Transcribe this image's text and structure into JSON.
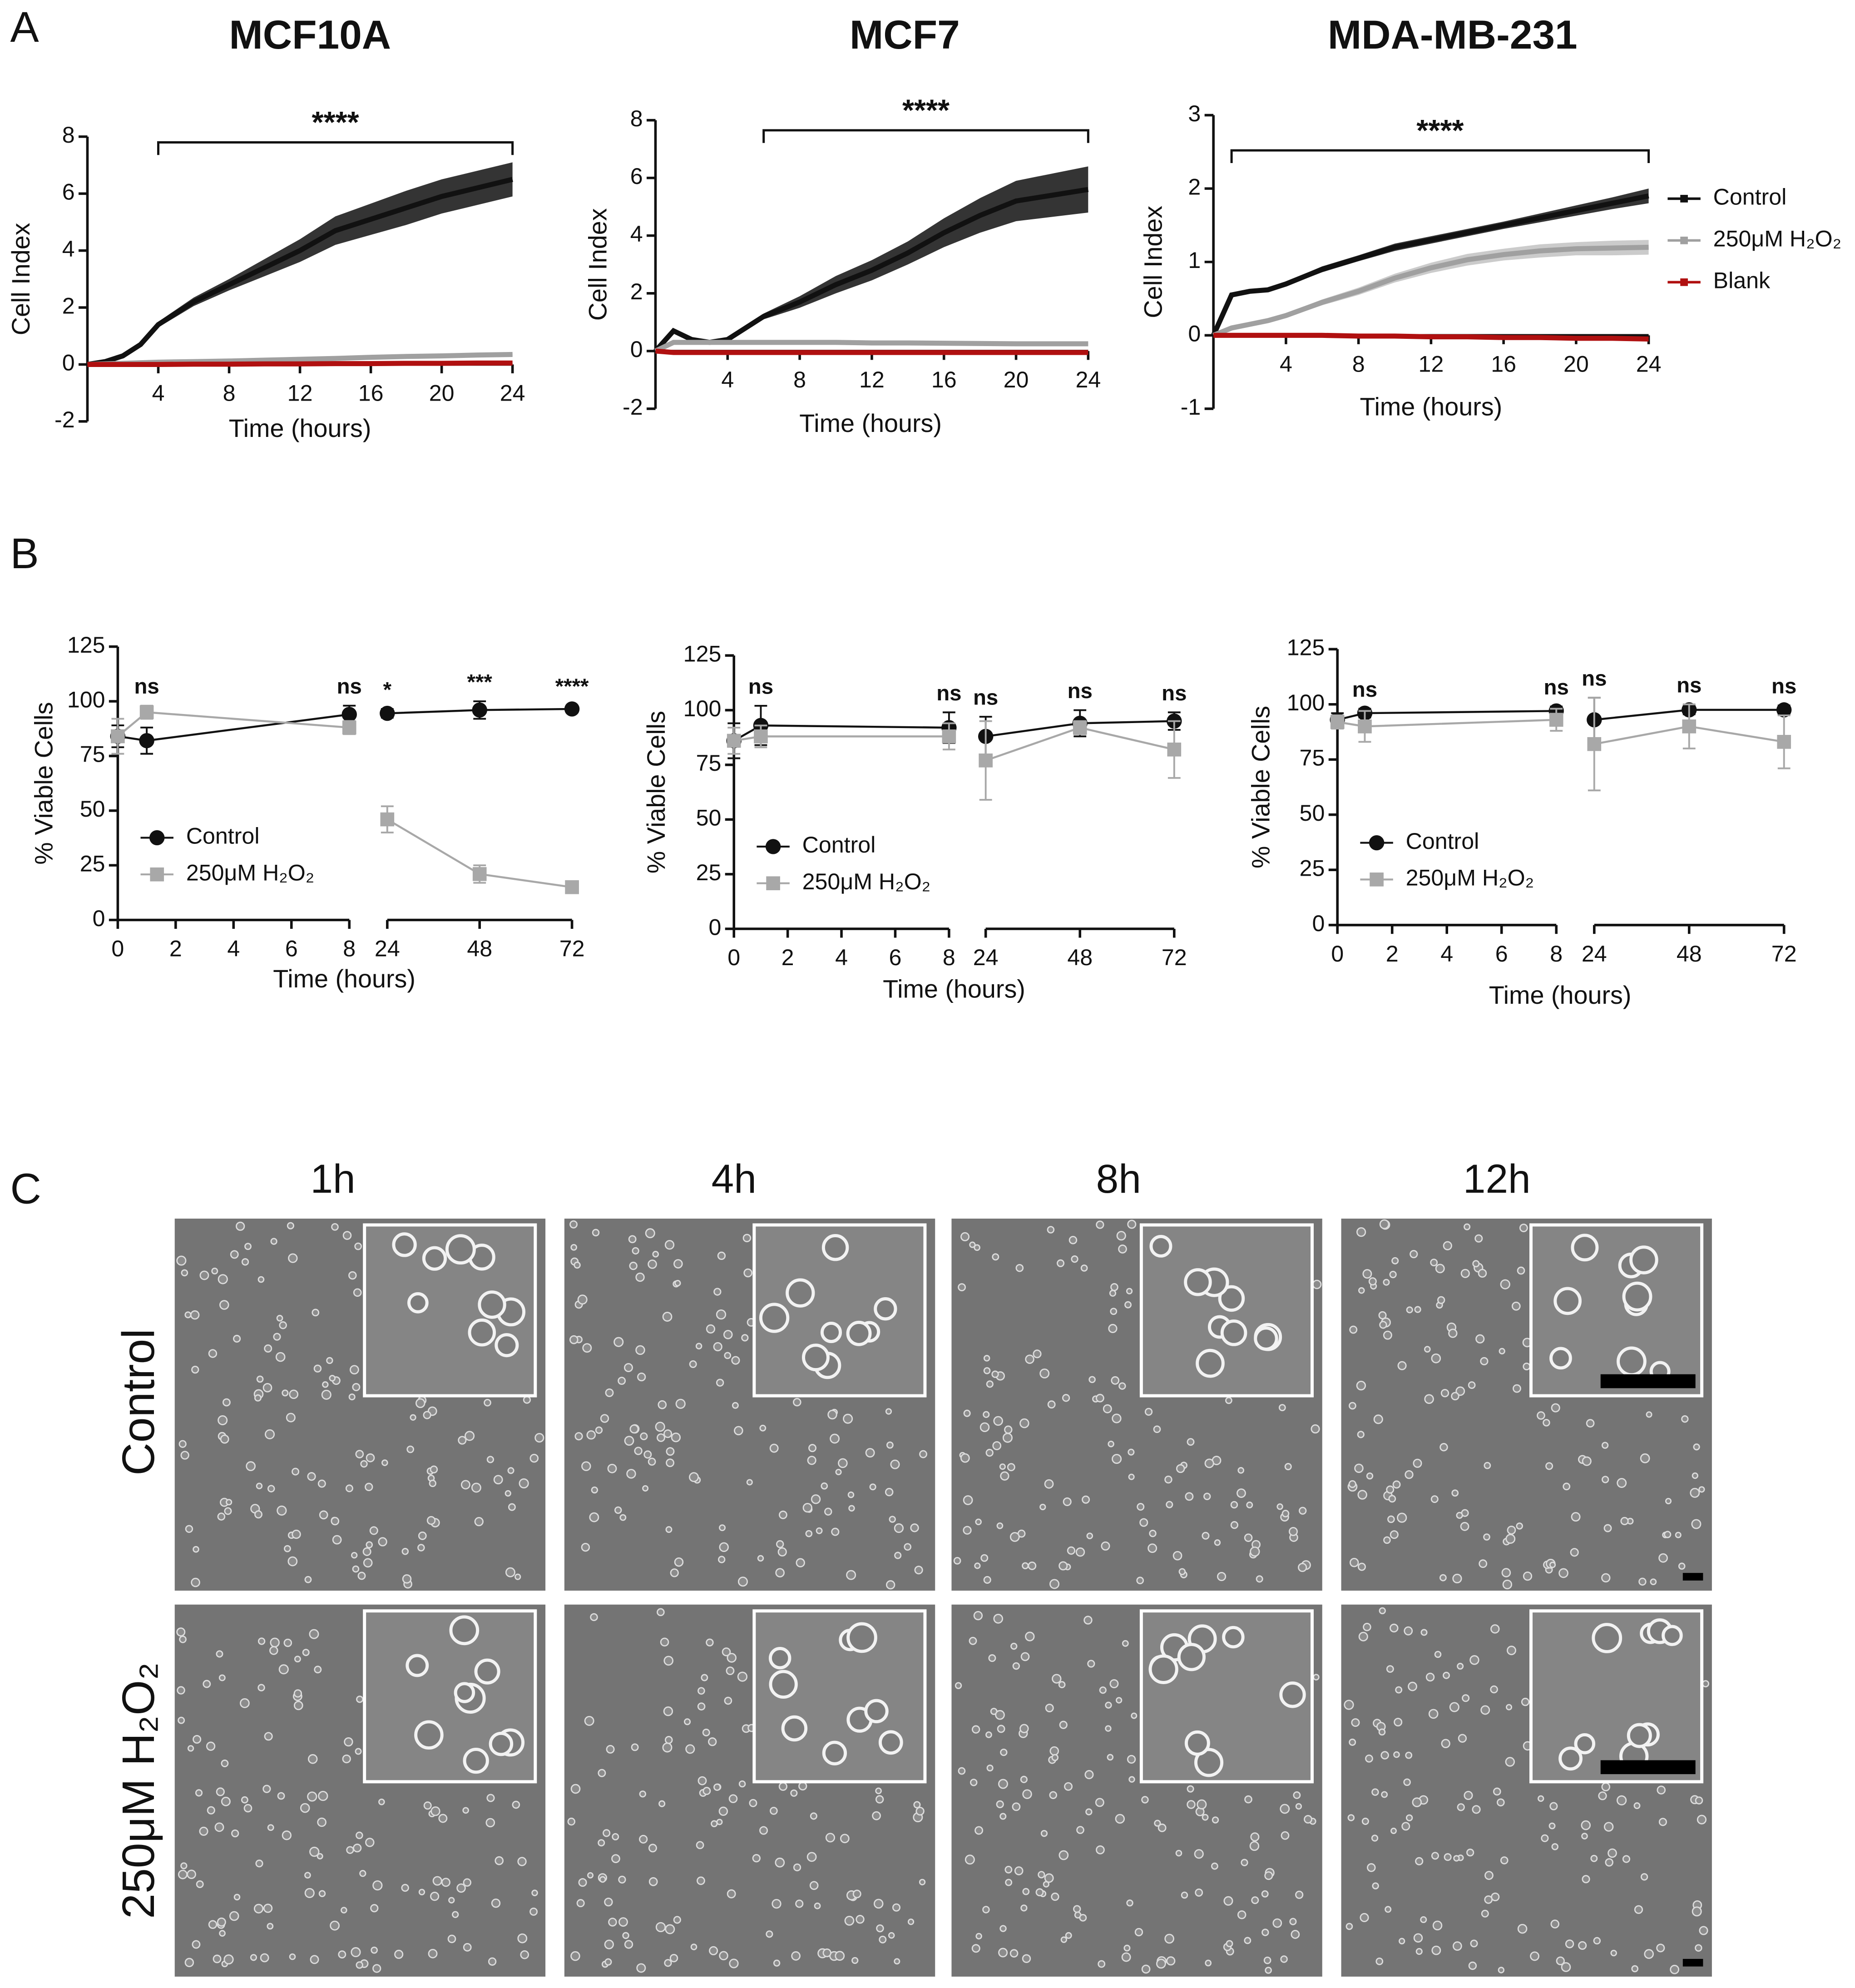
{
  "panel_labels": [
    "A",
    "B",
    "C"
  ],
  "chart_data": [
    {
      "type": "line",
      "title": "MCF10A",
      "x_label": "Time (hours)",
      "y_label": "Cell Index",
      "x": [
        0,
        1,
        2,
        3,
        4,
        6,
        8,
        10,
        12,
        14,
        16,
        18,
        20,
        22,
        24
      ],
      "xlim": [
        0,
        24
      ],
      "xticks": [
        4,
        8,
        12,
        16,
        20,
        24
      ],
      "ylim": [
        -2,
        8
      ],
      "yticks": [
        -2,
        0,
        2,
        4,
        6,
        8
      ],
      "band": true,
      "series": [
        {
          "name": "Control",
          "color": "#111111",
          "values": [
            0,
            0.1,
            0.3,
            0.7,
            1.4,
            2.2,
            2.8,
            3.4,
            4.0,
            4.7,
            5.1,
            5.5,
            5.9,
            6.2,
            6.5
          ],
          "error": [
            0,
            0.02,
            0.05,
            0.08,
            0.1,
            0.15,
            0.2,
            0.3,
            0.4,
            0.5,
            0.55,
            0.6,
            0.6,
            0.6,
            0.6
          ]
        },
        {
          "name": "250μM H₂O₂",
          "color": "#a0a0a0",
          "values": [
            0,
            0.02,
            0.04,
            0.06,
            0.08,
            0.1,
            0.12,
            0.15,
            0.18,
            0.21,
            0.25,
            0.28,
            0.3,
            0.33,
            0.35
          ],
          "error": [
            0,
            0.05,
            0.05,
            0.05,
            0.05,
            0.05,
            0.05,
            0.05,
            0.05,
            0.05,
            0.05,
            0.05,
            0.05,
            0.05,
            0.05
          ]
        },
        {
          "name": "Blank",
          "color": "#b01010",
          "values": [
            0,
            0,
            0,
            0,
            0,
            0.01,
            0.01,
            0.02,
            0.02,
            0.03,
            0.03,
            0.04,
            0.04,
            0.05,
            0.05
          ]
        }
      ],
      "annotation": {
        "label": "****",
        "x_start": 4,
        "x_end": 24,
        "y": 7.8
      }
    },
    {
      "type": "line",
      "title": "MCF7",
      "x_label": "Time (hours)",
      "y_label": "Cell Index",
      "x": [
        0,
        1,
        2,
        3,
        4,
        6,
        8,
        10,
        12,
        14,
        16,
        18,
        20,
        22,
        24
      ],
      "xlim": [
        0,
        24
      ],
      "xticks": [
        4,
        8,
        12,
        16,
        20,
        24
      ],
      "ylim": [
        -2,
        8
      ],
      "yticks": [
        -2,
        0,
        2,
        4,
        6,
        8
      ],
      "band": true,
      "series": [
        {
          "name": "Control",
          "color": "#111111",
          "values": [
            0,
            0.7,
            0.4,
            0.3,
            0.4,
            1.2,
            1.7,
            2.3,
            2.8,
            3.4,
            4.1,
            4.7,
            5.2,
            5.4,
            5.6
          ],
          "error": [
            0,
            0.05,
            0.05,
            0.05,
            0.05,
            0.1,
            0.2,
            0.3,
            0.35,
            0.4,
            0.5,
            0.6,
            0.7,
            0.75,
            0.8
          ]
        },
        {
          "name": "250μM H₂O₂",
          "color": "#a0a0a0",
          "values": [
            0,
            0.3,
            0.3,
            0.3,
            0.3,
            0.3,
            0.3,
            0.3,
            0.28,
            0.28,
            0.27,
            0.26,
            0.25,
            0.25,
            0.25
          ],
          "error": [
            0,
            0.08,
            0.08,
            0.08,
            0.08,
            0.08,
            0.08,
            0.08,
            0.08,
            0.08,
            0.08,
            0.08,
            0.08,
            0.08,
            0.08
          ]
        },
        {
          "name": "Blank",
          "color": "#b01010",
          "values": [
            0,
            -0.05,
            -0.05,
            -0.05,
            -0.05,
            -0.05,
            -0.05,
            -0.05,
            -0.05,
            -0.05,
            -0.05,
            -0.05,
            -0.05,
            -0.05,
            -0.05
          ]
        }
      ],
      "annotation": {
        "label": "****",
        "x_start": 6,
        "x_end": 24,
        "y": 7.65
      }
    },
    {
      "type": "line",
      "title": "MDA-MB-231",
      "x_label": "Time (hours)",
      "y_label": "Cell Index",
      "x": [
        0,
        1,
        2,
        3,
        4,
        6,
        8,
        10,
        12,
        14,
        16,
        18,
        20,
        22,
        24
      ],
      "xlim": [
        0,
        24
      ],
      "xticks": [
        4,
        8,
        12,
        16,
        20,
        24
      ],
      "ylim": [
        -1,
        3
      ],
      "yticks": [
        -1,
        0,
        1,
        2,
        3
      ],
      "band": true,
      "legend": "right",
      "series": [
        {
          "name": "Control",
          "color": "#111111",
          "values": [
            0,
            0.55,
            0.6,
            0.62,
            0.7,
            0.9,
            1.05,
            1.2,
            1.3,
            1.4,
            1.5,
            1.6,
            1.7,
            1.8,
            1.9
          ],
          "error": [
            0,
            0.02,
            0.02,
            0.03,
            0.03,
            0.04,
            0.04,
            0.05,
            0.05,
            0.05,
            0.05,
            0.06,
            0.07,
            0.08,
            0.1
          ]
        },
        {
          "name": "250μM H₂O₂",
          "color": "#a0a0a0",
          "values": [
            0,
            0.1,
            0.15,
            0.2,
            0.27,
            0.45,
            0.6,
            0.78,
            0.92,
            1.03,
            1.1,
            1.15,
            1.18,
            1.19,
            1.2
          ],
          "error": [
            0,
            0.02,
            0.03,
            0.03,
            0.03,
            0.04,
            0.05,
            0.06,
            0.07,
            0.08,
            0.08,
            0.09,
            0.09,
            0.1,
            0.1
          ]
        },
        {
          "name": "Blank",
          "color": "#b01010",
          "values": [
            0,
            0,
            0,
            0,
            0,
            0,
            -0.01,
            -0.01,
            -0.02,
            -0.02,
            -0.03,
            -0.03,
            -0.04,
            -0.04,
            -0.05
          ]
        }
      ],
      "annotation": {
        "label": "****",
        "x_start": 1,
        "x_end": 24,
        "y": 2.52
      }
    },
    {
      "type": "line",
      "x_label": "Time (hours)",
      "y_label": "% Viable Cells",
      "x": [
        0,
        1,
        8,
        24,
        48,
        72
      ],
      "xlim_segments": [
        [
          0,
          8
        ],
        [
          24,
          72
        ]
      ],
      "xticks": [
        0,
        2,
        4,
        6,
        8,
        24,
        48,
        72
      ],
      "ylim": [
        0,
        125
      ],
      "yticks": [
        0,
        25,
        50,
        75,
        100,
        125
      ],
      "legend": "lower left",
      "series": [
        {
          "name": "Control",
          "color": "#111111",
          "marker": "circle",
          "values": [
            84,
            82,
            94,
            94.5,
            96,
            96.5
          ],
          "error": [
            5,
            6,
            4,
            2,
            4,
            1.5
          ]
        },
        {
          "name": "250μM H₂O₂",
          "color": "#a8a8a8",
          "marker": "square",
          "values": [
            84,
            95,
            88,
            46,
            21,
            15
          ],
          "error": [
            8,
            3,
            3,
            6,
            4,
            2
          ]
        }
      ],
      "significance": [
        {
          "x": 1,
          "label": "ns"
        },
        {
          "x": 8,
          "label": "ns"
        },
        {
          "x": 24,
          "label": "*"
        },
        {
          "x": 48,
          "label": "***"
        },
        {
          "x": 72,
          "label": "****"
        }
      ]
    },
    {
      "type": "line",
      "x_label": "Time (hours)",
      "y_label": "% Viable Cells",
      "x": [
        0,
        1,
        8,
        24,
        48,
        72
      ],
      "xlim_segments": [
        [
          0,
          8
        ],
        [
          24,
          72
        ]
      ],
      "xticks": [
        0,
        2,
        4,
        6,
        8,
        24,
        48,
        72
      ],
      "ylim": [
        0,
        125
      ],
      "yticks": [
        0,
        25,
        50,
        75,
        100,
        125
      ],
      "legend": "lower left",
      "series": [
        {
          "name": "Control",
          "color": "#111111",
          "marker": "circle",
          "values": [
            86,
            93,
            92,
            88,
            94,
            95
          ],
          "error": [
            8,
            9,
            7,
            9,
            6,
            4
          ]
        },
        {
          "name": "250μM H₂O₂",
          "color": "#a8a8a8",
          "marker": "square",
          "values": [
            86,
            88,
            88,
            77,
            92,
            82
          ],
          "error": [
            6,
            5,
            6,
            18,
            3,
            13
          ]
        }
      ],
      "significance": [
        {
          "x": 1,
          "label": "ns"
        },
        {
          "x": 8,
          "label": "ns"
        },
        {
          "x": 24,
          "label": "ns"
        },
        {
          "x": 48,
          "label": "ns"
        },
        {
          "x": 72,
          "label": "ns"
        }
      ]
    },
    {
      "type": "line",
      "x_label": "Time (hours)",
      "y_label": "% Viable Cells",
      "x": [
        0,
        1,
        8,
        24,
        48,
        72
      ],
      "xlim_segments": [
        [
          0,
          8
        ],
        [
          24,
          72
        ]
      ],
      "xticks": [
        0,
        2,
        4,
        6,
        8,
        24,
        48,
        72
      ],
      "ylim": [
        0,
        125
      ],
      "yticks": [
        0,
        25,
        50,
        75,
        100,
        125
      ],
      "legend": "lower left",
      "series": [
        {
          "name": "Control",
          "color": "#111111",
          "marker": "circle",
          "values": [
            93,
            96,
            97,
            93,
            97.5,
            97.5
          ],
          "error": [
            3,
            2,
            2,
            10,
            2,
            2
          ]
        },
        {
          "name": "250μM H₂O₂",
          "color": "#a8a8a8",
          "marker": "square",
          "values": [
            92,
            90,
            93,
            82,
            90,
            83
          ],
          "error": [
            3,
            7,
            5,
            21,
            10,
            12
          ]
        }
      ],
      "significance": [
        {
          "x": 1,
          "label": "ns"
        },
        {
          "x": 8,
          "label": "ns"
        },
        {
          "x": 24,
          "label": "ns"
        },
        {
          "x": 48,
          "label": "ns"
        },
        {
          "x": 72,
          "label": "ns"
        }
      ]
    }
  ],
  "micrographs": {
    "columns": [
      "1h",
      "4h",
      "8h",
      "12h"
    ],
    "rows": [
      "Control",
      "250μM H₂O₂"
    ]
  }
}
